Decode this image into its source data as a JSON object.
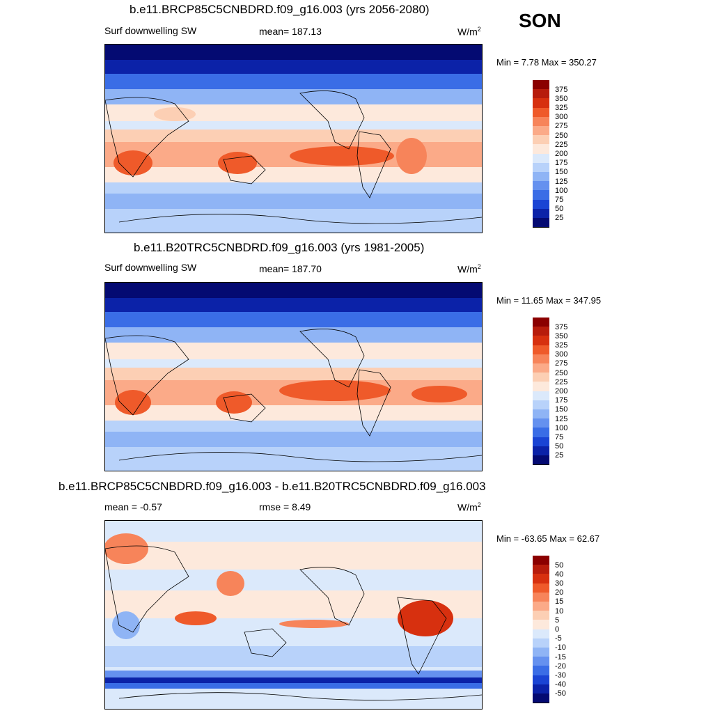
{
  "season": "SON",
  "panels": [
    {
      "title": "b.e11.BRCP85C5CNBDRD.f09_g16.003 (yrs 2056-2080)",
      "left_label": "Surf downwelling SW",
      "center_label": "mean= 187.13",
      "units": "W/m",
      "units_sup": "2",
      "minmax": "Min =   7.78 Max = 350.27",
      "colorbar": {
        "labels": [
          "375",
          "350",
          "325",
          "300",
          "275",
          "250",
          "225",
          "200",
          "175",
          "150",
          "125",
          "100",
          "75",
          "50",
          "25"
        ],
        "colors": [
          "#8b0000",
          "#b71c0c",
          "#d7300f",
          "#ef5a2a",
          "#f7845a",
          "#fbaa88",
          "#fccfb4",
          "#fde9dc",
          "#dbe9fb",
          "#b8d2fa",
          "#8fb4f5",
          "#6591ef",
          "#3a6de6",
          "#1a44d4",
          "#0b22a8",
          "#040a72"
        ]
      }
    },
    {
      "title": "b.e11.B20TRC5CNBDRD.f09_g16.003 (yrs 1981-2005)",
      "left_label": "Surf downwelling SW",
      "center_label": "mean= 187.70",
      "units": "W/m",
      "units_sup": "2",
      "minmax": "Min =  11.65 Max = 347.95",
      "colorbar": {
        "labels": [
          "375",
          "350",
          "325",
          "300",
          "275",
          "250",
          "225",
          "200",
          "175",
          "150",
          "125",
          "100",
          "75",
          "50",
          "25"
        ],
        "colors": [
          "#8b0000",
          "#b71c0c",
          "#d7300f",
          "#ef5a2a",
          "#f7845a",
          "#fbaa88",
          "#fccfb4",
          "#fde9dc",
          "#dbe9fb",
          "#b8d2fa",
          "#8fb4f5",
          "#6591ef",
          "#3a6de6",
          "#1a44d4",
          "#0b22a8",
          "#040a72"
        ]
      }
    },
    {
      "title": "b.e11.BRCP85C5CNBDRD.f09_g16.003 - b.e11.B20TRC5CNBDRD.f09_g16.003",
      "left_label": "mean =  -0.57",
      "center_label": "rmse =   8.49",
      "units": "W/m",
      "units_sup": "2",
      "minmax": "Min = -63.65 Max =  62.67",
      "colorbar": {
        "labels": [
          "50",
          "40",
          "30",
          "20",
          "15",
          "10",
          "5",
          "0",
          "-5",
          "-10",
          "-15",
          "-20",
          "-30",
          "-40",
          "-50"
        ],
        "colors": [
          "#8b0000",
          "#b71c0c",
          "#d7300f",
          "#ef5a2a",
          "#f7845a",
          "#fbaa88",
          "#fccfb4",
          "#fde9dc",
          "#dbe9fb",
          "#b8d2fa",
          "#8fb4f5",
          "#6591ef",
          "#3a6de6",
          "#1a44d4",
          "#0b22a8",
          "#040a72"
        ]
      }
    }
  ]
}
